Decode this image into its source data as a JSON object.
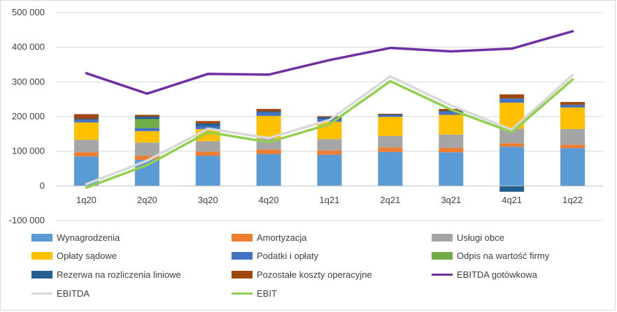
{
  "chart_data": {
    "type": "bar",
    "stacked": true,
    "categories": [
      "1q20",
      "2q20",
      "3q20",
      "4q20",
      "1q21",
      "2q21",
      "3q21",
      "4q21",
      "1q22"
    ],
    "y_ticks": [
      "500 000",
      "400 000",
      "300 000",
      "200 000",
      "100 000",
      "0",
      "-100 000"
    ],
    "ylim": [
      -100000,
      500000
    ],
    "grid": true,
    "legend_position": "bottom",
    "bar_series": [
      {
        "name": "Wynagrodzenia",
        "color": "#5b9bd5",
        "values": [
          85000,
          75000,
          87000,
          92000,
          90000,
          98000,
          97000,
          113000,
          109000
        ]
      },
      {
        "name": "Amortyzacja",
        "color": "#ed7d31",
        "values": [
          12000,
          12000,
          12000,
          13000,
          12000,
          13000,
          13000,
          10000,
          10000
        ]
      },
      {
        "name": "Usługi obce",
        "color": "#a5a5a5",
        "values": [
          36000,
          38000,
          30000,
          32000,
          33000,
          33000,
          38000,
          42000,
          45000
        ]
      },
      {
        "name": "Opłaty sądowe",
        "color": "#ffc000",
        "values": [
          50000,
          33000,
          35000,
          65000,
          50000,
          55000,
          57000,
          75000,
          62000
        ]
      },
      {
        "name": "Podatki i opłaty",
        "color": "#4472c4",
        "values": [
          8000,
          9000,
          8000,
          10000,
          9000,
          5000,
          9000,
          12000,
          8000
        ]
      },
      {
        "name": "Odpis na wartość firmy",
        "color": "#70ad47",
        "values": [
          0,
          26000,
          0,
          0,
          0,
          0,
          0,
          0,
          0
        ]
      },
      {
        "name": "Rezerwa na rozliczenia liniowe",
        "color": "#255e91",
        "values": [
          2000,
          7000,
          8000,
          3000,
          4000,
          2000,
          2000,
          -17000,
          -1000
        ]
      },
      {
        "name": "Pozostałe koszty operacyjne",
        "color": "#9e480e",
        "values": [
          14000,
          5000,
          7000,
          7000,
          3000,
          2000,
          6000,
          12000,
          8000
        ]
      }
    ],
    "line_series": [
      {
        "name": "EBITDA gotówkowa",
        "color": "#7030a0",
        "values": [
          325000,
          266000,
          323000,
          321000,
          363000,
          398000,
          388000,
          396000,
          446000
        ]
      },
      {
        "name": "EBITDA",
        "color": "#d9d9d9",
        "values": [
          5000,
          73000,
          165000,
          138000,
          190000,
          316000,
          232000,
          162000,
          320000
        ]
      },
      {
        "name": "EBIT",
        "color": "#92d050",
        "values": [
          -5000,
          60000,
          155000,
          126000,
          178000,
          302000,
          220000,
          155000,
          307000
        ]
      }
    ]
  }
}
